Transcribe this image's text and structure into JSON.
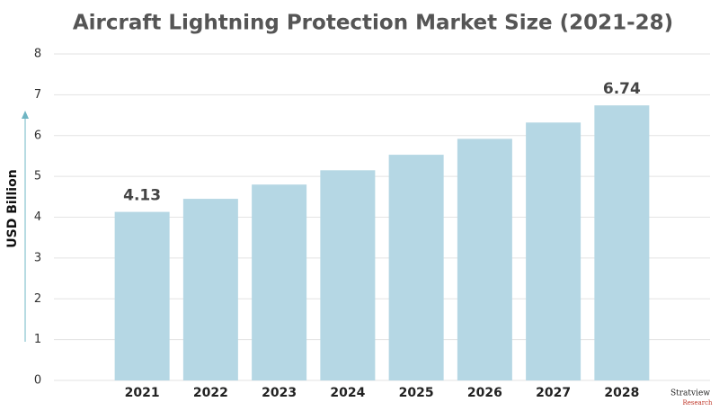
{
  "chart_data": {
    "type": "bar",
    "title": "Aircraft Lightning Protection Market Size (2021-28)",
    "y_label": "USD Billion",
    "categories": [
      "2021",
      "2022",
      "2023",
      "2024",
      "2025",
      "2026",
      "2027",
      "2028"
    ],
    "values": [
      4.13,
      4.45,
      4.8,
      5.15,
      5.53,
      5.92,
      6.32,
      6.74
    ],
    "labeled_bars": [
      0,
      7
    ],
    "color": "#b5d7e4",
    "ylim": [
      0,
      8
    ],
    "yticks": [
      0,
      1,
      2,
      3,
      4,
      5,
      6,
      7,
      8
    ],
    "grid": true,
    "logo": [
      "Stratview",
      "Research"
    ]
  }
}
